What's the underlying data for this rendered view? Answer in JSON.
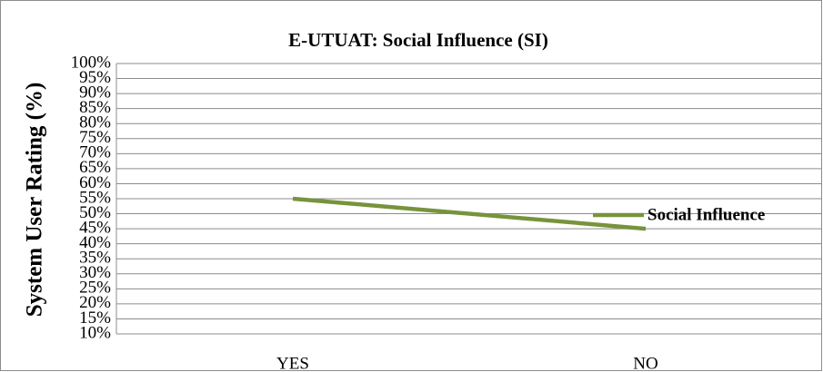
{
  "chart_data": {
    "type": "line",
    "title": "E-UTUAT: Social Influence (SI)",
    "ylabel": "System User Rating (%)",
    "categories": [
      "YES",
      "NO"
    ],
    "series": [
      {
        "name": "Social Influence",
        "color": "#77933c",
        "values": [
          55,
          45
        ]
      }
    ],
    "ylim": [
      10,
      100
    ],
    "yticks": [
      {
        "value": 10,
        "label": "10%"
      },
      {
        "value": 15,
        "label": "15%"
      },
      {
        "value": 20,
        "label": "20%"
      },
      {
        "value": 25,
        "label": "25%"
      },
      {
        "value": 30,
        "label": "30%"
      },
      {
        "value": 35,
        "label": "35%"
      },
      {
        "value": 40,
        "label": "40%"
      },
      {
        "value": 45,
        "label": "45%"
      },
      {
        "value": 50,
        "label": "50%"
      },
      {
        "value": 55,
        "label": "55%"
      },
      {
        "value": 60,
        "label": "60%"
      },
      {
        "value": 65,
        "label": "65%"
      },
      {
        "value": 70,
        "label": "70%"
      },
      {
        "value": 75,
        "label": "75%"
      },
      {
        "value": 80,
        "label": "80%"
      },
      {
        "value": 85,
        "label": "85%"
      },
      {
        "value": 90,
        "label": "90%"
      },
      {
        "value": 95,
        "label": "95%"
      },
      {
        "value": 100,
        "label": "100%"
      }
    ],
    "grid": true,
    "legend": "right"
  }
}
